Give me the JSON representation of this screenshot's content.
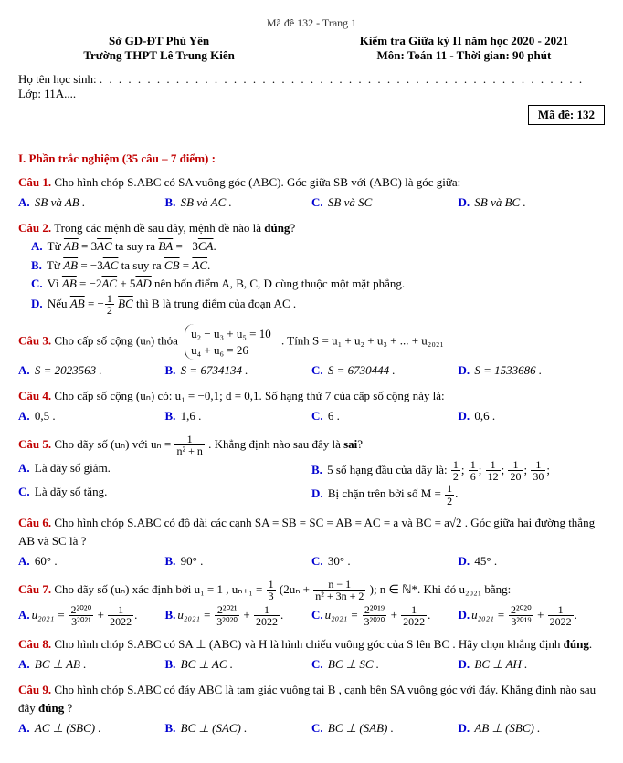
{
  "page_code": "Mã đề 132 - Trang 1",
  "header": {
    "left_line1": "Sở GD-ĐT Phú Yên",
    "left_line2": "Trường THPT Lê Trung Kiên",
    "right_line1": "Kiểm tra Giữa kỳ II năm học 2020 - 2021",
    "right_line2": "Môn: Toán 11 - Thời gian: 90 phút"
  },
  "student_label": "Họ tên học sinh: ",
  "class_label": "Lớp: 11A....",
  "ma_de_box": "Mã đề: 132",
  "section_title": "I. Phần trắc nghiệm (35 câu – 7 điểm) :",
  "labels": {
    "c1": "Câu 1.",
    "c2": "Câu 2.",
    "c3": "Câu 3.",
    "c4": "Câu 4.",
    "c5": "Câu 5.",
    "c6": "Câu 6.",
    "c7": "Câu 7.",
    "c8": "Câu 8.",
    "c9": "Câu 9.",
    "A": "A.",
    "B": "B.",
    "C": "C.",
    "D": "D."
  },
  "q1": {
    "text": "Cho hình chóp S.ABC có SA vuông góc (ABC). Góc giữa SB với (ABC) là góc giữa:",
    "a": "SB và AB .",
    "b": "SB và AC .",
    "c": "SB và SC",
    "d": "SB và BC ."
  },
  "q2": {
    "stem": "Trong các mệnh đề sau đây, mệnh đề nào là ",
    "dung": "đúng",
    "stem_end": "?",
    "a_pre": "Từ ",
    "a_eq1a": "AB",
    "a_eq1b": " = 3",
    "a_eq1c": "AC",
    "a_mid": " ta suy ra ",
    "a_eq2a": "BA",
    "a_eq2b": " = −3",
    "a_eq2c": "CA",
    "a_end": ".",
    "b_pre": "Từ ",
    "b_eq1a": "AB",
    "b_eq1b": " = −3",
    "b_eq1c": "AC",
    "b_mid": " ta suy ra ",
    "b_eq2a": "CB",
    "b_eq2b": " = ",
    "b_eq2c": "AC",
    "b_end": ".",
    "c_pre": "Vì ",
    "c_eq1a": "AB",
    "c_eq1b": " = −2",
    "c_eq1c": "AC",
    "c_eq1d": " + 5",
    "c_eq1e": "AD",
    "c_mid": " nên bốn điểm A, B, C, D cùng thuộc một mặt phẳng.",
    "d_pre": "Nếu ",
    "d_eq1a": "AB",
    "d_eq1b": " = −",
    "d_num": "1",
    "d_den": "2",
    "d_eq1c": "BC",
    "d_mid": " thì B là trung điểm của đoạn AC ."
  },
  "q3": {
    "pre": "Cho cấp số cộng (uₙ) thỏa ",
    "brace_line1": "u₂ − u₃ + u₅ = 10",
    "brace_line2": "u₄ + u₆ = 26",
    "post": ". Tính S = u₁ + u₂ + u₃ + ... + u₂₀₂₁",
    "a": "S = 2023563 .",
    "b": "S = 6734134 .",
    "c": "S = 6730444 .",
    "d": "S = 1533686 ."
  },
  "q4": {
    "text": "Cho cấp số cộng (uₙ) có: u₁ = −0,1; d = 0,1. Số hạng thứ 7 của cấp số cộng này là:",
    "a": "0,5 .",
    "b": "1,6 .",
    "c": "6 .",
    "d": "0,6 ."
  },
  "q5": {
    "pre": "Cho dãy số (uₙ) với uₙ = ",
    "num": "1",
    "den": "n² + n",
    "post": " . Khẳng định nào sau đây là ",
    "sai": "sai",
    "post_end": "?",
    "a": "Là dãy số giảm.",
    "b_pre": "5 số hạng đầu của dãy là: ",
    "b_f1n": "1",
    "b_f1d": "2",
    "b_f2n": "1",
    "b_f2d": "6",
    "b_f3n": "1",
    "b_f3d": "12",
    "b_f4n": "1",
    "b_f4d": "20",
    "b_f5n": "1",
    "b_f5d": "30",
    "b_end": ";",
    "c": "Là dãy số tăng.",
    "d_pre": "Bị chặn trên bởi số M = ",
    "d_num": "1",
    "d_den": "2",
    "d_end": "."
  },
  "q6": {
    "text": "Cho hình chóp S.ABC có độ dài các cạnh SA = SB = SC = AB = AC = a và BC = a√2 . Góc giữa hai đường thẳng AB và SC là ?",
    "a": "60° .",
    "b": "90° .",
    "c": "30° .",
    "d": "45° ."
  },
  "q7": {
    "pre": "Cho dãy số (uₙ) xác định bởi u₁ = 1 , uₙ₊₁ = ",
    "f1n": "1",
    "f1d": "3",
    "mid1": "(2uₙ + ",
    "f2n": "n − 1",
    "f2d": "n² + 3n + 2",
    "mid2": "); n ∈ ℕ*. Khi đó u₂₀₂₁ bằng:",
    "a_pre": "u₂₀₂₁ = ",
    "a_f1n": "2²⁰²⁰",
    "a_f1d": "3²⁰²¹",
    "a_plus": " + ",
    "a_f2n": "1",
    "a_f2d": "2022",
    "a_end": ".",
    "b_pre": "u₂₀₂₁ = ",
    "b_f1n": "2²⁰²¹",
    "b_f1d": "3²⁰²⁰",
    "b_plus": " + ",
    "b_f2n": "1",
    "b_f2d": "2022",
    "b_end": ".",
    "c_pre": "u₂₀₂₁ = ",
    "c_f1n": "2²⁰¹⁹",
    "c_f1d": "3²⁰²⁰",
    "c_plus": " + ",
    "c_f2n": "1",
    "c_f2d": "2022",
    "c_end": ".",
    "d_pre": "u₂₀₂₁ = ",
    "d_f1n": "2²⁰²⁰",
    "d_f1d": "3²⁰¹⁹",
    "d_plus": " + ",
    "d_f2n": "1",
    "d_f2d": "2022",
    "d_end": "."
  },
  "q8": {
    "text": "Cho hình chóp S.ABC có SA ⊥ (ABC) và H là hình chiếu vuông góc của S lên BC . Hãy chọn khẳng định ",
    "dung": "đúng",
    "text_end": ".",
    "a": "BC ⊥ AB .",
    "b": "BC ⊥ AC .",
    "c": "BC ⊥ SC .",
    "d": "BC ⊥ AH ."
  },
  "q9": {
    "text": "Cho hình chóp S.ABC có đáy ABC là tam giác vuông tại B , cạnh bên SA vuông góc với đáy. Khẳng định nào sau đây ",
    "dung": "đúng",
    "text_end": " ?",
    "a": "AC ⊥ (SBC) .",
    "b": "BC ⊥ (SAC) .",
    "c": "BC ⊥ (SAB) .",
    "d": "AB ⊥ (SBC) ."
  },
  "colors": {
    "accent": "#c00000",
    "blue": "#0000d0",
    "text": "#000000",
    "bg": "#ffffff"
  },
  "fontsize": 13
}
